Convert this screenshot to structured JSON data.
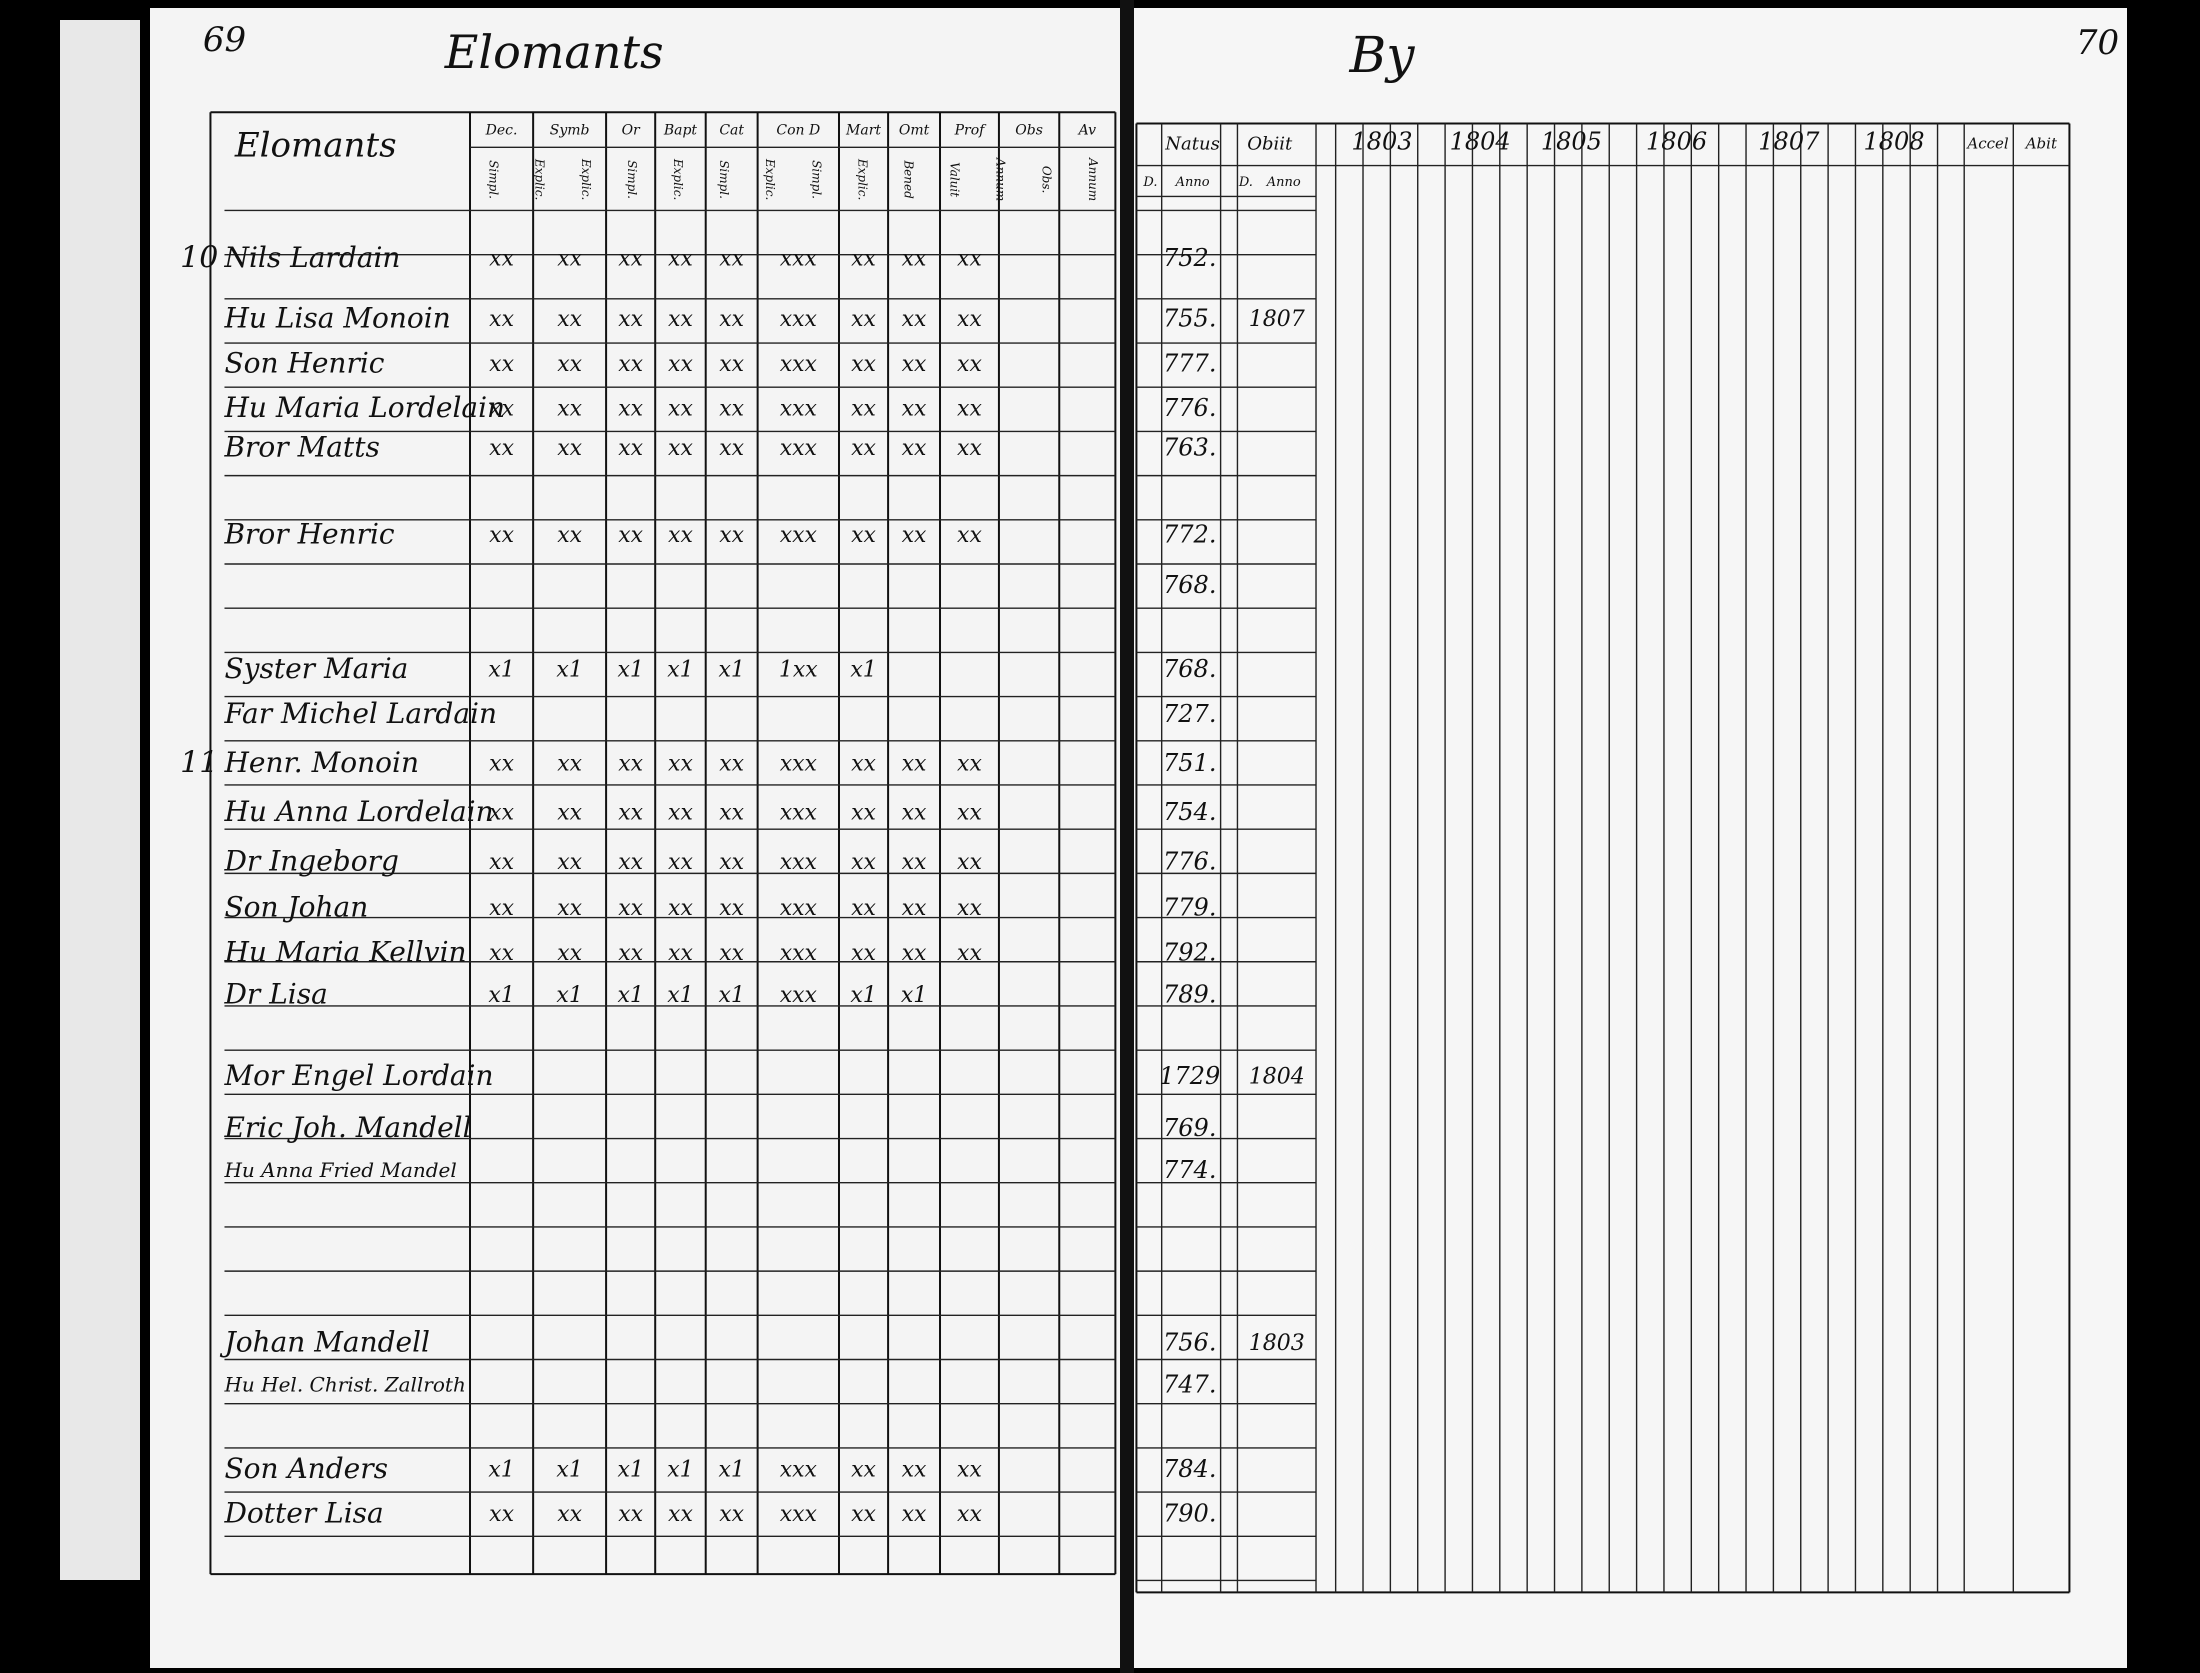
{
  "left_page": {
    "page_number": "69",
    "heading": "Elomants",
    "column_groups": [
      "Dec.",
      "Symb",
      "Or",
      "Bapt",
      "Cat",
      "Con D",
      "Mart",
      "Omt",
      "Prof",
      "Obs",
      "Av"
    ],
    "column_subheads": [
      "Simpl.",
      "Explic.",
      "Explic.",
      "Simpl.",
      "Explic.",
      "Simpl.",
      "Explic.",
      "Simpl.",
      "Explic.",
      "Bened",
      "Valuit",
      "Annum",
      "Obs.",
      "Annum"
    ],
    "name_header": "Elomants"
  },
  "right_page": {
    "page_number": "70",
    "heading": "By",
    "headers": [
      "Natus",
      "Obiit",
      "D.",
      "Anno",
      "D.",
      "Anno"
    ],
    "years": [
      "1803",
      "1804",
      "1805",
      "1806",
      "1807",
      "1808"
    ],
    "end_headers": [
      "Accel",
      "Abit"
    ]
  },
  "rows": [
    {
      "num": "10",
      "name": "Nils Lardain",
      "marks": [
        "xx",
        "xx",
        "xx",
        "xx",
        "xx",
        "xxx",
        "xx",
        "xx",
        "xx"
      ],
      "born": "752."
    },
    {
      "name": "Hu Lisa Monoin",
      "marks": [
        "xx",
        "xx",
        "xx",
        "xx",
        "xx",
        "xxx",
        "xx",
        "xx",
        "xx"
      ],
      "born": "755.",
      "obiit": "1807"
    },
    {
      "name": "Son Henric",
      "marks": [
        "xx",
        "xx",
        "xx",
        "xx",
        "xx",
        "xxx",
        "xx",
        "xx",
        "xx"
      ],
      "born": "777."
    },
    {
      "name": "Hu Maria Lordelain",
      "marks": [
        "xx",
        "xx",
        "xx",
        "xx",
        "xx",
        "xxx",
        "xx",
        "xx",
        "xx"
      ],
      "born": "776."
    },
    {
      "name": "Bror Matts",
      "marks": [
        "xx",
        "xx",
        "xx",
        "xx",
        "xx",
        "xxx",
        "xx",
        "xx",
        "xx"
      ],
      "born": "763."
    },
    {
      "name": "Bror Henric",
      "marks": [
        "xx",
        "xx",
        "xx",
        "xx",
        "xx",
        "xxx",
        "xx",
        "xx",
        "xx"
      ],
      "born": "772."
    },
    {
      "born": "768."
    },
    {
      "name": "Syster Maria",
      "marks": [
        "x1",
        "x1",
        "x1",
        "x1",
        "x1",
        "1xx",
        "x1"
      ],
      "born": "768."
    },
    {
      "name": "Far Michel Lardain",
      "born": "727."
    },
    {
      "num": "11",
      "name": "Henr. Monoin",
      "marks": [
        "xx",
        "xx",
        "xx",
        "xx",
        "xx",
        "xxx",
        "xx",
        "xx",
        "xx"
      ],
      "born": "751."
    },
    {
      "name": "Hu Anna Lordelain",
      "marks": [
        "xx",
        "xx",
        "xx",
        "xx",
        "xx",
        "xxx",
        "xx",
        "xx",
        "xx"
      ],
      "born": "754."
    },
    {
      "name": "Dr Ingeborg",
      "marks": [
        "xx",
        "xx",
        "xx",
        "xx",
        "xx",
        "xxx",
        "xx",
        "xx",
        "xx"
      ],
      "born": "776."
    },
    {
      "name": "Son Johan",
      "marks": [
        "xx",
        "xx",
        "xx",
        "xx",
        "xx",
        "xxx",
        "xx",
        "xx",
        "xx"
      ],
      "born": "779."
    },
    {
      "name": "Hu Maria Kellvin",
      "marks": [
        "xx",
        "xx",
        "xx",
        "xx",
        "xx",
        "xxx",
        "xx",
        "xx",
        "xx"
      ],
      "born": "792."
    },
    {
      "name": "Dr Lisa",
      "marks": [
        "x1",
        "x1",
        "x1",
        "x1",
        "x1",
        "xxx",
        "x1",
        "x1"
      ],
      "born": "789."
    },
    {
      "name": "Mor Engel Lordain",
      "born": "1729",
      "obiit": "1804"
    },
    {
      "name": "Eric Joh. Mandell",
      "born": "769."
    },
    {
      "name": "Hu Anna Fried Mandel",
      "born": "774."
    },
    {
      "name": "Johan Mandell",
      "born": "756.",
      "obiit": "1803"
    },
    {
      "name": "Hu Hel. Christ. Zallroth",
      "born": "747."
    },
    {
      "name": "Son Anders",
      "marks": [
        "x1",
        "x1",
        "x1",
        "x1",
        "x1",
        "xxx",
        "xx",
        "xx",
        "xx"
      ],
      "born": "784."
    },
    {
      "name": "Dotter Lisa",
      "marks": [
        "xx",
        "xx",
        "xx",
        "xx",
        "xx",
        "xxx",
        "xx",
        "xx",
        "xx"
      ],
      "born": "790."
    }
  ]
}
